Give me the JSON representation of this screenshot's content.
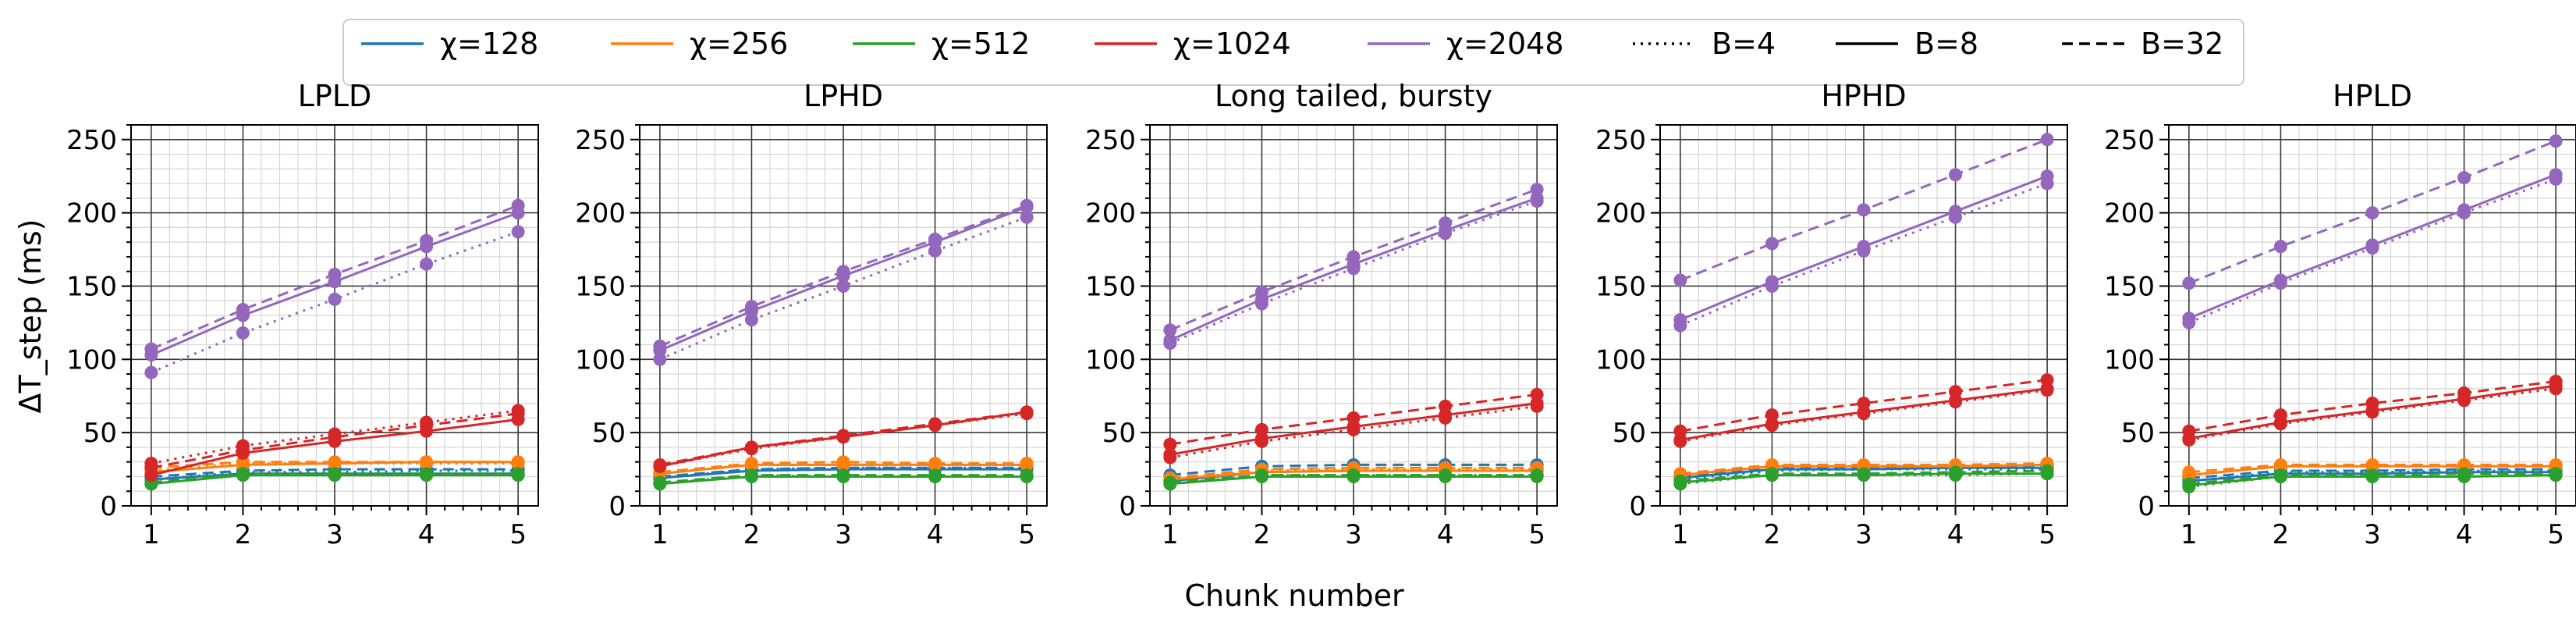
{
  "colors": {
    "χ=128": "#1f77b4",
    "χ=256": "#ff7f0e",
    "χ=512": "#2ca02c",
    "χ=1024": "#d62728",
    "χ=2048": "#9467bd"
  },
  "legend": {
    "chi_entries": [
      "χ=128",
      "χ=256",
      "χ=512",
      "χ=1024",
      "χ=2048"
    ],
    "b_entries": [
      {
        "label": "B=4",
        "style": "dotted"
      },
      {
        "label": "B=8",
        "style": "solid"
      },
      {
        "label": "B=32",
        "style": "dashed"
      }
    ]
  },
  "xlabel": "Chunk number",
  "ylabel": "ΔT_step (ms)",
  "chart_data": [
    {
      "type": "line",
      "title": "LPLD",
      "x": [
        1,
        2,
        3,
        4,
        5
      ],
      "ylim": [
        0,
        260
      ],
      "yticks": [
        0,
        50,
        100,
        150,
        200,
        250
      ],
      "grid": true,
      "series": [
        {
          "name": "χ=128",
          "B": "B=4",
          "values": [
            18,
            23,
            23,
            24,
            24
          ]
        },
        {
          "name": "χ=128",
          "B": "B=8",
          "values": [
            18,
            22,
            22,
            22,
            22
          ]
        },
        {
          "name": "χ=128",
          "B": "B=32",
          "values": [
            20,
            24,
            25,
            25,
            25
          ]
        },
        {
          "name": "χ=256",
          "B": "B=4",
          "values": [
            24,
            29,
            29,
            29,
            29
          ]
        },
        {
          "name": "χ=256",
          "B": "B=8",
          "values": [
            23,
            28,
            29,
            30,
            30
          ]
        },
        {
          "name": "χ=256",
          "B": "B=32",
          "values": [
            26,
            30,
            30,
            30,
            30
          ]
        },
        {
          "name": "χ=512",
          "B": "B=4",
          "values": [
            15,
            21,
            21,
            21,
            21
          ]
        },
        {
          "name": "χ=512",
          "B": "B=8",
          "values": [
            15,
            21,
            21,
            21,
            21
          ]
        },
        {
          "name": "χ=512",
          "B": "B=32",
          "values": [
            16,
            22,
            22,
            22,
            22
          ]
        },
        {
          "name": "χ=1024",
          "B": "B=4",
          "values": [
            29,
            41,
            49,
            57,
            65
          ]
        },
        {
          "name": "χ=1024",
          "B": "B=8",
          "values": [
            21,
            36,
            44,
            51,
            59
          ]
        },
        {
          "name": "χ=1024",
          "B": "B=32",
          "values": [
            26,
            38,
            47,
            55,
            63
          ]
        },
        {
          "name": "χ=2048",
          "B": "B=4",
          "values": [
            91,
            118,
            141,
            165,
            187
          ]
        },
        {
          "name": "χ=2048",
          "B": "B=8",
          "values": [
            103,
            130,
            153,
            177,
            200
          ]
        },
        {
          "name": "χ=2048",
          "B": "B=32",
          "values": [
            107,
            134,
            158,
            181,
            205
          ]
        }
      ]
    },
    {
      "type": "line",
      "title": "LPHD",
      "x": [
        1,
        2,
        3,
        4,
        5
      ],
      "ylim": [
        0,
        260
      ],
      "yticks": [
        0,
        50,
        100,
        150,
        200,
        250
      ],
      "grid": true,
      "series": [
        {
          "name": "χ=128",
          "B": "B=4",
          "values": [
            19,
            25,
            26,
            26,
            26
          ]
        },
        {
          "name": "χ=128",
          "B": "B=8",
          "values": [
            19,
            24,
            25,
            25,
            25
          ]
        },
        {
          "name": "χ=128",
          "B": "B=32",
          "values": [
            20,
            25,
            26,
            26,
            26
          ]
        },
        {
          "name": "χ=256",
          "B": "B=4",
          "values": [
            22,
            28,
            28,
            28,
            28
          ]
        },
        {
          "name": "χ=256",
          "B": "B=8",
          "values": [
            22,
            28,
            28,
            28,
            28
          ]
        },
        {
          "name": "χ=256",
          "B": "B=32",
          "values": [
            23,
            29,
            30,
            29,
            29
          ]
        },
        {
          "name": "χ=512",
          "B": "B=4",
          "values": [
            15,
            21,
            20,
            20,
            20
          ]
        },
        {
          "name": "χ=512",
          "B": "B=8",
          "values": [
            15,
            20,
            20,
            20,
            20
          ]
        },
        {
          "name": "χ=512",
          "B": "B=32",
          "values": [
            16,
            21,
            21,
            21,
            21
          ]
        },
        {
          "name": "χ=1024",
          "B": "B=4",
          "values": [
            27,
            39,
            47,
            55,
            63
          ]
        },
        {
          "name": "χ=1024",
          "B": "B=8",
          "values": [
            27,
            40,
            47,
            55,
            64
          ]
        },
        {
          "name": "χ=1024",
          "B": "B=32",
          "values": [
            28,
            40,
            48,
            56,
            64
          ]
        },
        {
          "name": "χ=2048",
          "B": "B=4",
          "values": [
            100,
            127,
            150,
            174,
            197
          ]
        },
        {
          "name": "χ=2048",
          "B": "B=8",
          "values": [
            106,
            133,
            157,
            180,
            204
          ]
        },
        {
          "name": "χ=2048",
          "B": "B=32",
          "values": [
            109,
            136,
            160,
            182,
            205
          ]
        }
      ]
    },
    {
      "type": "line",
      "title": "Long tailed, bursty",
      "x": [
        1,
        2,
        3,
        4,
        5
      ],
      "ylim": [
        0,
        260
      ],
      "yticks": [
        0,
        50,
        100,
        150,
        200,
        250
      ],
      "grid": true,
      "series": [
        {
          "name": "χ=128",
          "B": "B=4",
          "values": [
            17,
            24,
            24,
            25,
            25
          ]
        },
        {
          "name": "χ=128",
          "B": "B=8",
          "values": [
            17,
            23,
            24,
            24,
            24
          ]
        },
        {
          "name": "χ=128",
          "B": "B=32",
          "values": [
            21,
            27,
            28,
            28,
            28
          ]
        },
        {
          "name": "χ=256",
          "B": "B=4",
          "values": [
            18,
            24,
            25,
            25,
            25
          ]
        },
        {
          "name": "χ=256",
          "B": "B=8",
          "values": [
            18,
            23,
            24,
            24,
            24
          ]
        },
        {
          "name": "χ=256",
          "B": "B=32",
          "values": [
            19,
            25,
            26,
            26,
            26
          ]
        },
        {
          "name": "χ=512",
          "B": "B=4",
          "values": [
            15,
            21,
            21,
            21,
            21
          ]
        },
        {
          "name": "χ=512",
          "B": "B=8",
          "values": [
            15,
            20,
            20,
            20,
            20
          ]
        },
        {
          "name": "χ=512",
          "B": "B=32",
          "values": [
            16,
            21,
            21,
            21,
            21
          ]
        },
        {
          "name": "χ=1024",
          "B": "B=4",
          "values": [
            33,
            44,
            52,
            60,
            68
          ]
        },
        {
          "name": "χ=1024",
          "B": "B=8",
          "values": [
            35,
            46,
            54,
            62,
            70
          ]
        },
        {
          "name": "χ=1024",
          "B": "B=32",
          "values": [
            42,
            52,
            60,
            68,
            76
          ]
        },
        {
          "name": "χ=2048",
          "B": "B=4",
          "values": [
            111,
            138,
            162,
            186,
            208
          ]
        },
        {
          "name": "χ=2048",
          "B": "B=8",
          "values": [
            113,
            141,
            165,
            188,
            210
          ]
        },
        {
          "name": "χ=2048",
          "B": "B=32",
          "values": [
            120,
            146,
            170,
            193,
            216
          ]
        }
      ]
    },
    {
      "type": "line",
      "title": "HPHD",
      "x": [
        1,
        2,
        3,
        4,
        5
      ],
      "ylim": [
        0,
        260
      ],
      "yticks": [
        0,
        50,
        100,
        150,
        200,
        250
      ],
      "grid": true,
      "series": [
        {
          "name": "χ=128",
          "B": "B=4",
          "values": [
            18,
            24,
            25,
            25,
            25
          ]
        },
        {
          "name": "χ=128",
          "B": "B=8",
          "values": [
            19,
            25,
            25,
            26,
            26
          ]
        },
        {
          "name": "χ=128",
          "B": "B=32",
          "values": [
            20,
            26,
            26,
            27,
            27
          ]
        },
        {
          "name": "χ=256",
          "B": "B=4",
          "values": [
            21,
            27,
            27,
            27,
            28
          ]
        },
        {
          "name": "χ=256",
          "B": "B=8",
          "values": [
            21,
            27,
            27,
            27,
            28
          ]
        },
        {
          "name": "χ=256",
          "B": "B=32",
          "values": [
            22,
            28,
            28,
            28,
            29
          ]
        },
        {
          "name": "χ=512",
          "B": "B=4",
          "values": [
            15,
            21,
            21,
            21,
            22
          ]
        },
        {
          "name": "χ=512",
          "B": "B=8",
          "values": [
            16,
            21,
            21,
            22,
            22
          ]
        },
        {
          "name": "χ=512",
          "B": "B=32",
          "values": [
            17,
            22,
            22,
            23,
            24
          ]
        },
        {
          "name": "χ=1024",
          "B": "B=4",
          "values": [
            44,
            55,
            63,
            71,
            79
          ]
        },
        {
          "name": "χ=1024",
          "B": "B=8",
          "values": [
            45,
            56,
            64,
            72,
            80
          ]
        },
        {
          "name": "χ=1024",
          "B": "B=32",
          "values": [
            51,
            62,
            70,
            78,
            86
          ]
        },
        {
          "name": "χ=2048",
          "B": "B=4",
          "values": [
            123,
            150,
            174,
            197,
            220
          ]
        },
        {
          "name": "χ=2048",
          "B": "B=8",
          "values": [
            127,
            153,
            177,
            201,
            225
          ]
        },
        {
          "name": "χ=2048",
          "B": "B=32",
          "values": [
            154,
            179,
            202,
            226,
            250
          ]
        }
      ]
    },
    {
      "type": "line",
      "title": "HPLD",
      "x": [
        1,
        2,
        3,
        4,
        5
      ],
      "ylim": [
        0,
        260
      ],
      "yticks": [
        0,
        50,
        100,
        150,
        200,
        250
      ],
      "grid": true,
      "series": [
        {
          "name": "χ=128",
          "B": "B=4",
          "values": [
            17,
            23,
            23,
            24,
            24
          ]
        },
        {
          "name": "χ=128",
          "B": "B=8",
          "values": [
            17,
            22,
            22,
            23,
            23
          ]
        },
        {
          "name": "χ=128",
          "B": "B=32",
          "values": [
            19,
            24,
            24,
            25,
            25
          ]
        },
        {
          "name": "χ=256",
          "B": "B=4",
          "values": [
            21,
            27,
            27,
            27,
            27
          ]
        },
        {
          "name": "χ=256",
          "B": "B=8",
          "values": [
            21,
            27,
            27,
            27,
            27
          ]
        },
        {
          "name": "χ=256",
          "B": "B=32",
          "values": [
            23,
            28,
            28,
            28,
            28
          ]
        },
        {
          "name": "χ=512",
          "B": "B=4",
          "values": [
            13,
            20,
            20,
            20,
            21
          ]
        },
        {
          "name": "χ=512",
          "B": "B=8",
          "values": [
            14,
            20,
            20,
            20,
            21
          ]
        },
        {
          "name": "χ=512",
          "B": "B=32",
          "values": [
            15,
            21,
            21,
            22,
            22
          ]
        },
        {
          "name": "χ=1024",
          "B": "B=4",
          "values": [
            45,
            56,
            64,
            72,
            80
          ]
        },
        {
          "name": "χ=1024",
          "B": "B=8",
          "values": [
            46,
            57,
            65,
            73,
            82
          ]
        },
        {
          "name": "χ=1024",
          "B": "B=32",
          "values": [
            51,
            62,
            70,
            77,
            85
          ]
        },
        {
          "name": "χ=2048",
          "B": "B=4",
          "values": [
            125,
            152,
            176,
            200,
            223
          ]
        },
        {
          "name": "χ=2048",
          "B": "B=8",
          "values": [
            128,
            154,
            178,
            202,
            226
          ]
        },
        {
          "name": "χ=2048",
          "B": "B=32",
          "values": [
            152,
            177,
            200,
            224,
            249
          ]
        }
      ]
    }
  ]
}
